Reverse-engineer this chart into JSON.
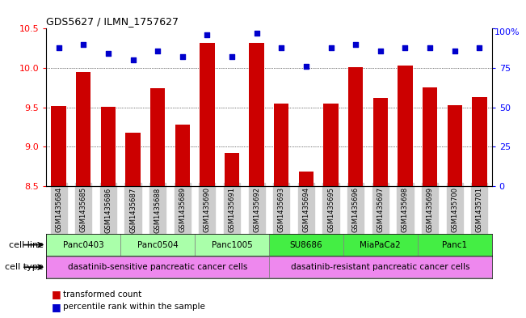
{
  "title": "GDS5627 / ILMN_1757627",
  "samples": [
    "GSM1435684",
    "GSM1435685",
    "GSM1435686",
    "GSM1435687",
    "GSM1435688",
    "GSM1435689",
    "GSM1435690",
    "GSM1435691",
    "GSM1435692",
    "GSM1435693",
    "GSM1435694",
    "GSM1435695",
    "GSM1435696",
    "GSM1435697",
    "GSM1435698",
    "GSM1435699",
    "GSM1435700",
    "GSM1435701"
  ],
  "transformed_counts": [
    9.52,
    9.95,
    9.51,
    9.18,
    9.74,
    9.28,
    10.32,
    8.92,
    10.32,
    9.55,
    8.68,
    9.55,
    10.01,
    9.62,
    10.03,
    9.75,
    9.53,
    9.63
  ],
  "percentile_ranks": [
    88,
    90,
    84,
    80,
    86,
    82,
    96,
    82,
    97,
    88,
    76,
    88,
    90,
    86,
    88,
    88,
    86,
    88
  ],
  "cell_lines": [
    {
      "name": "Panc0403",
      "start": 0,
      "end": 2,
      "color": "#aaffaa"
    },
    {
      "name": "Panc0504",
      "start": 3,
      "end": 5,
      "color": "#aaffaa"
    },
    {
      "name": "Panc1005",
      "start": 6,
      "end": 8,
      "color": "#aaffaa"
    },
    {
      "name": "SU8686",
      "start": 9,
      "end": 11,
      "color": "#44ee44"
    },
    {
      "name": "MiaPaCa2",
      "start": 12,
      "end": 14,
      "color": "#44ee44"
    },
    {
      "name": "Panc1",
      "start": 15,
      "end": 17,
      "color": "#44ee44"
    }
  ],
  "cell_types": [
    {
      "name": "dasatinib-sensitive pancreatic cancer cells",
      "start": 0,
      "end": 8,
      "color": "#ee88ee"
    },
    {
      "name": "dasatinib-resistant pancreatic cancer cells",
      "start": 9,
      "end": 17,
      "color": "#ee88ee"
    }
  ],
  "ylim_left": [
    8.5,
    10.5
  ],
  "ylim_right": [
    0,
    100
  ],
  "yticks_left": [
    8.5,
    9.0,
    9.5,
    10.0,
    10.5
  ],
  "yticks_right": [
    0,
    25,
    50,
    75,
    100
  ],
  "bar_color": "#cc0000",
  "dot_color": "#0000cc",
  "background_color": "#ffffff",
  "tick_bg_color": "#cccccc",
  "legend_bar_label": "transformed count",
  "legend_dot_label": "percentile rank within the sample"
}
